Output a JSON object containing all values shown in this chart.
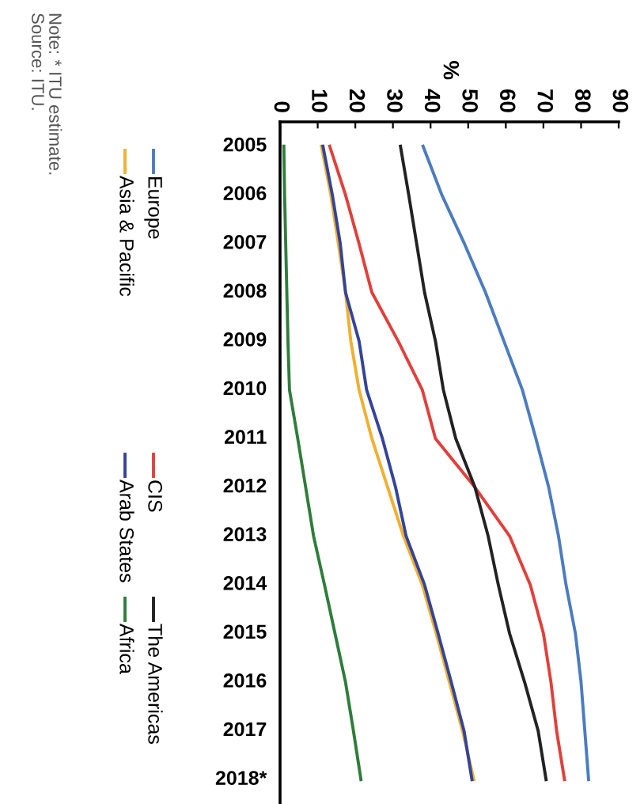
{
  "chart_data": {
    "type": "line",
    "x2label": "%",
    "categories": [
      "2005",
      "2006",
      "2007",
      "2008",
      "2009",
      "2010",
      "2011",
      "2012",
      "2013",
      "2014",
      "2015",
      "2016",
      "2017",
      "2018*"
    ],
    "series": [
      {
        "name": "Europe",
        "color": "#4a7cc0",
        "values": [
          38,
          43,
          49,
          54.6,
          59.5,
          64.4,
          68,
          71.4,
          74,
          76,
          78.5,
          80,
          81,
          82
        ]
      },
      {
        "name": "CIS",
        "color": "#e0403a",
        "values": [
          13.2,
          17.4,
          21,
          24.4,
          31.4,
          37.8,
          41.3,
          51.8,
          61,
          66.5,
          70,
          72,
          73.5,
          75.6
        ]
      },
      {
        "name": "The Americas",
        "color": "#222222",
        "values": [
          32,
          34.2,
          36.3,
          38.4,
          41.3,
          43.4,
          46.7,
          51.8,
          55.3,
          58,
          61,
          65,
          68.6,
          70.7
        ]
      },
      {
        "name": "Asia & Pacific",
        "color": "#f0b030",
        "values": [
          11,
          13.5,
          15.5,
          17.4,
          18.8,
          21,
          24.4,
          28.6,
          32.8,
          37.8,
          41.5,
          45,
          48.5,
          51.5
        ]
      },
      {
        "name": "Arab States",
        "color": "#34449a",
        "values": [
          11.4,
          13.9,
          16,
          17.4,
          21,
          23,
          27.2,
          30.7,
          33.5,
          38.4,
          42,
          45.5,
          48.9,
          51
        ]
      },
      {
        "name": "Africa",
        "color": "#2e7d3a",
        "values": [
          1,
          1.2,
          1.5,
          1.8,
          2.1,
          2.5,
          4.7,
          6.8,
          8.9,
          11.8,
          14.6,
          17.4,
          19.5,
          21.5
        ]
      }
    ],
    "xlim": [
      0,
      90
    ],
    "xticks": [
      0,
      10,
      20,
      30,
      40,
      50,
      60,
      70,
      80,
      90
    ],
    "orientation": "horizontal",
    "grid": false,
    "legend": "left",
    "annotations": [
      "Note: * ITU estimate.",
      "Source: ITU."
    ]
  }
}
